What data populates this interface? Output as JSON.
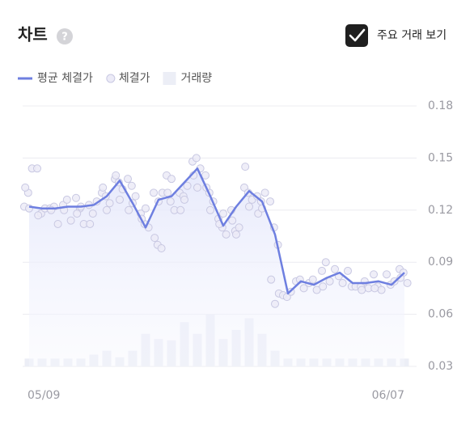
{
  "title": "차트",
  "toggle": {
    "label": "주요 거래 보기",
    "checked": true
  },
  "chart_data": {
    "type": "line",
    "categories": [
      "05/09",
      null,
      null,
      null,
      null,
      null,
      null,
      null,
      null,
      null,
      null,
      null,
      null,
      null,
      null,
      null,
      null,
      null,
      null,
      null,
      null,
      null,
      null,
      null,
      null,
      null,
      null,
      null,
      null,
      "06/07"
    ],
    "series": [
      {
        "name": "평균 체결가",
        "type": "line",
        "color": "#6e7fe0",
        "values": [
          0.122,
          0.121,
          0.121,
          0.122,
          0.122,
          0.123,
          0.128,
          0.137,
          0.124,
          0.11,
          0.126,
          0.128,
          0.136,
          0.144,
          0.128,
          0.111,
          0.122,
          0.131,
          0.125,
          0.106,
          0.072,
          0.079,
          0.077,
          0.081,
          0.084,
          0.078,
          0.078,
          0.079,
          0.077,
          0.084
        ]
      },
      {
        "name": "체결가",
        "type": "scatter",
        "color": "#c8c8e2",
        "values": [
          [
            0.122,
            0.13,
            0.144,
            0.133,
            0.121
          ],
          [
            0.144,
            0.118,
            0.121,
            0.117
          ],
          [
            0.121,
            0.122,
            0.112,
            0.12
          ],
          [
            0.123,
            0.126,
            0.114,
            0.12
          ],
          [
            0.127,
            0.121,
            0.112,
            0.118,
            0.122
          ],
          [
            0.123,
            0.118,
            0.125,
            0.112
          ],
          [
            0.13,
            0.128,
            0.124,
            0.133,
            0.12
          ],
          [
            0.138,
            0.136,
            0.132,
            0.14,
            0.126
          ],
          [
            0.138,
            0.134,
            0.128,
            0.12,
            0.124
          ],
          [
            0.118,
            0.112,
            0.11,
            0.115,
            0.121
          ],
          [
            0.13,
            0.1,
            0.098,
            0.104,
            0.125,
            0.13
          ],
          [
            0.14,
            0.125,
            0.12,
            0.13,
            0.138
          ],
          [
            0.13,
            0.128,
            0.134,
            0.12,
            0.126
          ],
          [
            0.148,
            0.15,
            0.144,
            0.14,
            0.133
          ],
          [
            0.14,
            0.13,
            0.125,
            0.133,
            0.12
          ],
          [
            0.115,
            0.11,
            0.106,
            0.112,
            0.118
          ],
          [
            0.12,
            0.108,
            0.11,
            0.114,
            0.106
          ],
          [
            0.133,
            0.13,
            0.126,
            0.145,
            0.122
          ],
          [
            0.128,
            0.125,
            0.13,
            0.118,
            0.121
          ],
          [
            0.125,
            0.11,
            0.1,
            0.08,
            0.066,
            0.072
          ],
          [
            0.071,
            0.07,
            0.073
          ],
          [
            0.079,
            0.08,
            0.075
          ],
          [
            0.078,
            0.08,
            0.074
          ],
          [
            0.085,
            0.09,
            0.079,
            0.076
          ],
          [
            0.086,
            0.082,
            0.078
          ],
          [
            0.085,
            0.076,
            0.076
          ],
          [
            0.076,
            0.079,
            0.075,
            0.074
          ],
          [
            0.083,
            0.076,
            0.074,
            0.075
          ],
          [
            0.083,
            0.077,
            0.079
          ],
          [
            0.086,
            0.084,
            0.078,
            0.081
          ]
        ]
      },
      {
        "name": "거래량",
        "type": "bar",
        "color": "#eceef6",
        "axis": "y2",
        "values": [
          3,
          3,
          3,
          3,
          3,
          4.5,
          6,
          3.5,
          6,
          12.5,
          10.5,
          10,
          17,
          12.5,
          20,
          10.5,
          14,
          18.5,
          12.5,
          6,
          3,
          3,
          3,
          3,
          3,
          3,
          3,
          3,
          3,
          3
        ]
      }
    ],
    "ylim": [
      0.03,
      0.18
    ],
    "yticks": [
      0.18,
      0.15,
      0.12,
      0.09,
      0.06,
      0.03
    ],
    "y2lim": [
      0,
      100
    ],
    "grid": true
  }
}
